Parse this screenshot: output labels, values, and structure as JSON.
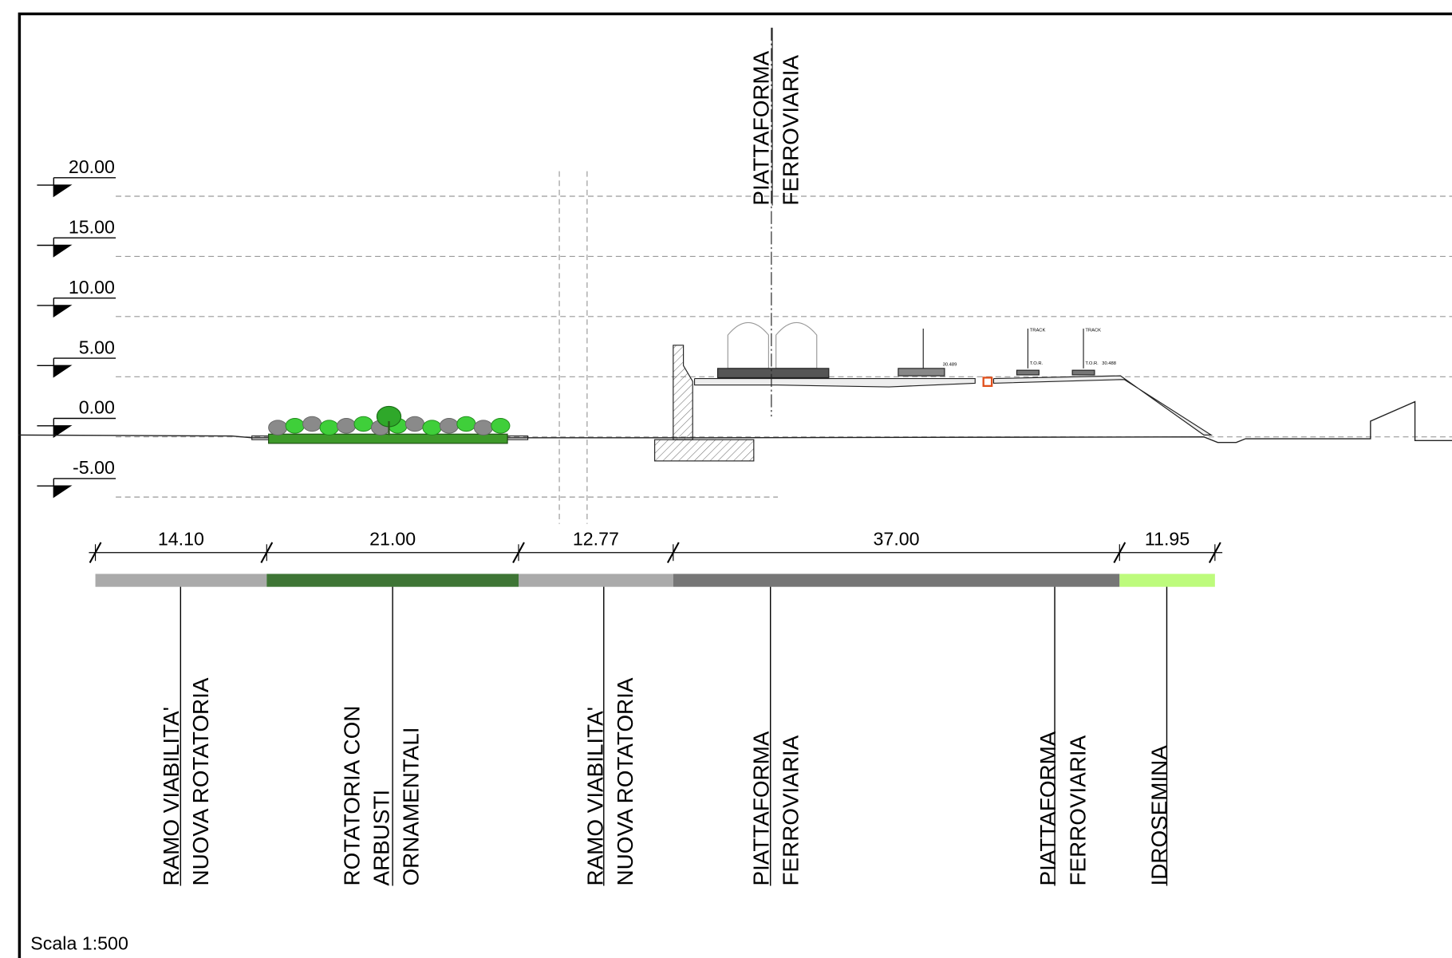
{
  "levels": [
    "20.00",
    "15.00",
    "10.00",
    "5.00",
    "0.00",
    "-5.00"
  ],
  "top_label": {
    "lines": [
      "PIATTAFORMA",
      "FERROVIARIA"
    ]
  },
  "annotations": {
    "track": "TRACK",
    "tor": "T.O.R.",
    "level_a": "30.489",
    "level_b": "30.488"
  },
  "dimensions": [
    {
      "label": "14.10",
      "color": "#aaaaaa"
    },
    {
      "label": "21.00",
      "color": "#3e7535"
    },
    {
      "label": "12.77",
      "color": "#aaaaaa"
    },
    {
      "label": "37.00",
      "color": "#767676"
    },
    {
      "label": "11.95",
      "color": "#bdfb7c"
    }
  ],
  "zones": [
    {
      "lines": [
        "RAMO VIABILITA'",
        "NUOVA ROTATORIA"
      ]
    },
    {
      "lines": [
        "ROTATORIA CON",
        "ARBUSTI",
        "ORNAMENTALI"
      ]
    },
    {
      "lines": [
        "RAMO VIABILITA'",
        "NUOVA ROTATORIA"
      ]
    },
    {
      "lines": [
        "PIATTAFORMA",
        "FERROVIARIA"
      ]
    },
    {
      "lines": [
        "PIATTAFORMA",
        "FERROVIARIA"
      ]
    },
    {
      "lines": [
        "IDROSEMINA"
      ]
    }
  ],
  "scale": "Scala 1:500"
}
